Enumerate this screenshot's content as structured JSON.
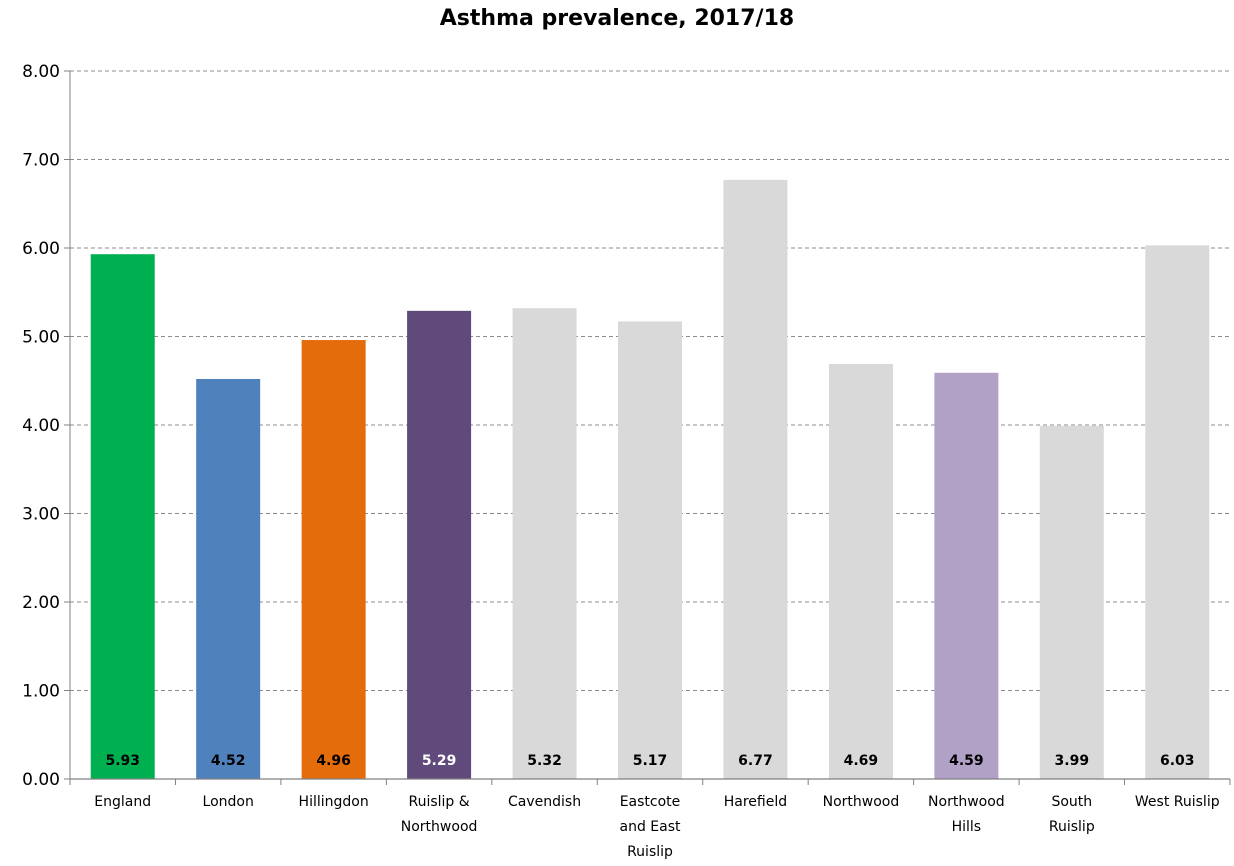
{
  "chart_data": {
    "type": "bar",
    "title": "Asthma prevalence, 2017/18",
    "xlabel": "",
    "ylabel": "",
    "ylim": [
      0,
      8
    ],
    "yticks": [
      "0.00",
      "1.00",
      "2.00",
      "3.00",
      "4.00",
      "5.00",
      "6.00",
      "7.00",
      "8.00"
    ],
    "grid": true,
    "categories": [
      [
        "England"
      ],
      [
        "London"
      ],
      [
        "Hillingdon"
      ],
      [
        "Ruislip &",
        "Northwood"
      ],
      [
        "Cavendish"
      ],
      [
        "Eastcote",
        "and East",
        "Ruislip"
      ],
      [
        "Harefield"
      ],
      [
        "Northwood"
      ],
      [
        "Northwood",
        "Hills"
      ],
      [
        "South",
        "Ruislip"
      ],
      [
        "West Ruislip"
      ]
    ],
    "values": [
      5.93,
      4.52,
      4.96,
      5.29,
      5.32,
      5.17,
      6.77,
      4.69,
      4.59,
      3.99,
      6.03
    ],
    "value_labels": [
      "5.93",
      "4.52",
      "4.96",
      "5.29",
      "5.32",
      "5.17",
      "6.77",
      "4.69",
      "4.59",
      "3.99",
      "6.03"
    ],
    "colors": [
      "#00B050",
      "#4F81BD",
      "#E46C0A",
      "#604A7B",
      "#D9D9D9",
      "#D9D9D9",
      "#D9D9D9",
      "#D9D9D9",
      "#B2A1C7",
      "#D9D9D9",
      "#D9D9D9"
    ],
    "label_colors": [
      "#000000",
      "#000000",
      "#000000",
      "#FFFFFF",
      "#000000",
      "#000000",
      "#000000",
      "#000000",
      "#000000",
      "#000000",
      "#000000"
    ]
  }
}
